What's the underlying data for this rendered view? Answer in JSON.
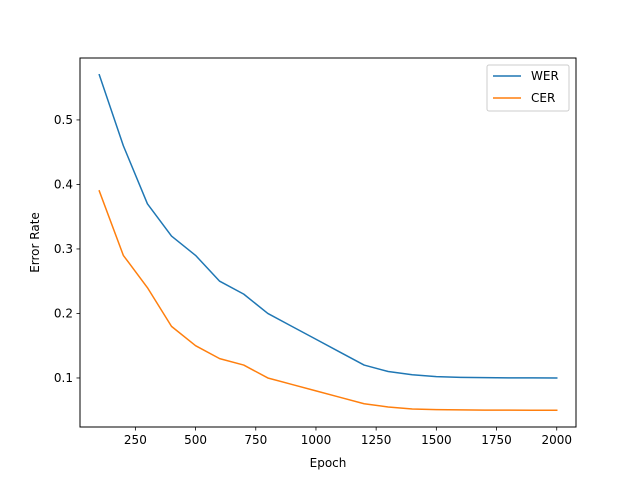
{
  "chart_data": {
    "type": "line",
    "title": "",
    "xlabel": "Epoch",
    "ylabel": "Error Rate",
    "x": [
      100,
      200,
      300,
      400,
      500,
      600,
      700,
      800,
      900,
      1000,
      1100,
      1200,
      1300,
      1400,
      1500,
      1600,
      1700,
      1800,
      1900,
      2000
    ],
    "series": [
      {
        "name": "WER",
        "color": "#1f77b4",
        "values": [
          0.57,
          0.46,
          0.37,
          0.32,
          0.29,
          0.25,
          0.23,
          0.2,
          0.18,
          0.16,
          0.14,
          0.12,
          0.11,
          0.105,
          0.102,
          0.101,
          0.1005,
          0.1002,
          0.1001,
          0.1
        ]
      },
      {
        "name": "CER",
        "color": "#ff7f0e",
        "values": [
          0.39,
          0.29,
          0.24,
          0.18,
          0.15,
          0.13,
          0.12,
          0.1,
          0.09,
          0.08,
          0.07,
          0.06,
          0.055,
          0.052,
          0.051,
          0.0505,
          0.0502,
          0.0501,
          0.05,
          0.05
        ]
      }
    ],
    "xlim": [
      20,
      2080
    ],
    "ylim": [
      0.024,
      0.596
    ],
    "xticks": [
      250,
      500,
      750,
      1000,
      1250,
      1500,
      1750,
      2000
    ],
    "yticks": [
      0.1,
      0.2,
      0.3,
      0.4,
      0.5
    ],
    "grid": false,
    "legend": "upper-right"
  }
}
